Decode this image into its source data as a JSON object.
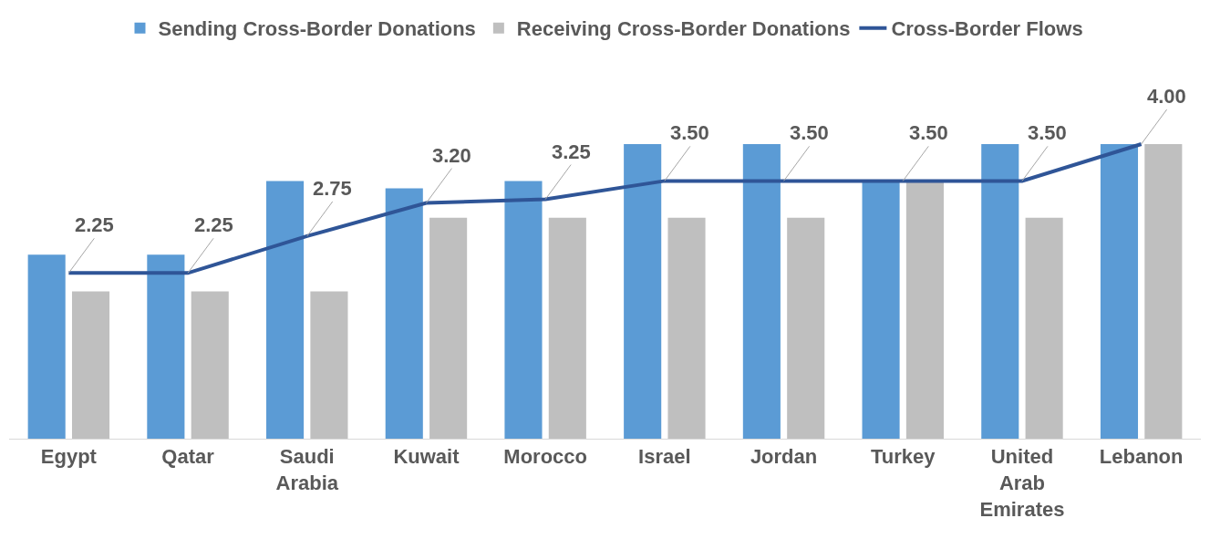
{
  "chart_data": {
    "type": "bar",
    "categories": [
      "Egypt",
      "Qatar",
      "Saudi Arabia",
      "Kuwait",
      "Morocco",
      "Israel",
      "Jordan",
      "Turkey",
      "United Arab Emirates",
      "Lebanon"
    ],
    "series": [
      {
        "name": "Sending Cross-Border Donations",
        "color": "#5b9bd5",
        "values": [
          2.5,
          2.5,
          3.5,
          3.4,
          3.5,
          4.0,
          4.0,
          3.5,
          4.0,
          4.0
        ]
      },
      {
        "name": "Receiving Cross-Border Donations",
        "color": "#bfbfbf",
        "values": [
          2.0,
          2.0,
          2.0,
          3.0,
          3.0,
          3.0,
          3.0,
          3.5,
          3.0,
          4.0
        ]
      },
      {
        "name": "Cross-Border Flows",
        "type": "line",
        "color": "#2f5597",
        "values": [
          2.25,
          2.25,
          2.75,
          3.2,
          3.25,
          3.5,
          3.5,
          3.5,
          3.5,
          4.0
        ],
        "value_labels": [
          "2.25",
          "2.25",
          "2.75",
          "3.20",
          "3.25",
          "3.50",
          "3.50",
          "3.50",
          "3.50",
          "4.00"
        ]
      }
    ],
    "grid": false,
    "legend": "top",
    "marker": "none",
    "line_style": "solid"
  }
}
